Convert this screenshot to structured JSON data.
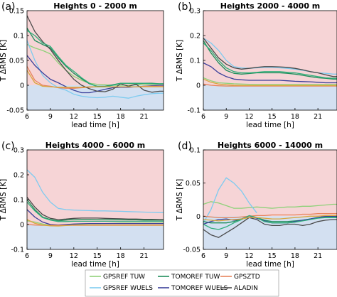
{
  "chart_data": [
    {
      "type": "line",
      "panel_label": "(a)",
      "title": "Heights 0 - 2000 m",
      "xlabel": "lead time [h]",
      "ylabel": "T ΔRMS [K]",
      "xlim": [
        6,
        23.5
      ],
      "ylim": [
        -0.05,
        0.15
      ],
      "xticks": [
        "6",
        "9",
        "12",
        "15",
        "18",
        "21"
      ],
      "xtick_values": [
        6,
        9,
        12,
        15,
        18,
        21
      ],
      "yticks": [
        "-0.05",
        "0",
        "0.05",
        "0.1",
        "0.15"
      ],
      "ytick_values": [
        -0.05,
        0,
        0.05,
        0.1,
        0.15
      ],
      "x": [
        6,
        7,
        8,
        9,
        10,
        11,
        12,
        13,
        14,
        15,
        16,
        17,
        18,
        19,
        20,
        21,
        22,
        23,
        23.5
      ],
      "series": [
        {
          "key": "gpsref_tuw",
          "values": [
            0.082,
            0.075,
            0.07,
            0.063,
            0.045,
            0.03,
            0.018,
            0.01,
            0.004,
            0.002,
            0.001,
            0.0,
            0.0,
            0.0,
            0.001,
            0.001,
            0.002,
            0.002,
            0.002
          ]
        },
        {
          "key": "gpsref_wuels",
          "values": [
            0.09,
            0.05,
            0.02,
            0.005,
            -0.005,
            -0.01,
            -0.018,
            -0.022,
            -0.024,
            -0.025,
            -0.024,
            -0.022,
            -0.024,
            -0.026,
            -0.022,
            -0.019,
            -0.017,
            -0.016,
            -0.016
          ]
        },
        {
          "key": "tomoref_tuw",
          "values": [
            0.115,
            0.09,
            0.082,
            0.075,
            0.055,
            0.038,
            0.024,
            0.013,
            0.003,
            -0.002,
            -0.002,
            0.001,
            0.004,
            0.004,
            0.003,
            0.004,
            0.004,
            0.003,
            0.003
          ]
        },
        {
          "key": "tomoref_wuels",
          "values": [
            0.06,
            0.04,
            0.025,
            0.012,
            0.005,
            -0.003,
            -0.01,
            -0.015,
            -0.015,
            -0.012,
            -0.008,
            -0.005,
            -0.004,
            -0.004,
            -0.003,
            -0.002,
            -0.001,
            0.0,
            0.0
          ]
        },
        {
          "key": "gpsztd",
          "values": [
            0.038,
            0.01,
            0.0,
            -0.002,
            -0.005,
            -0.006,
            -0.006,
            -0.005,
            -0.004,
            -0.003,
            -0.003,
            -0.003,
            -0.003,
            -0.003,
            -0.003,
            -0.002,
            -0.002,
            -0.002,
            -0.002
          ]
        },
        {
          "key": "aladin",
          "values": [
            0.14,
            0.108,
            0.088,
            0.072,
            0.05,
            0.03,
            0.012,
            0.0,
            -0.007,
            -0.012,
            -0.013,
            -0.008,
            0.003,
            -0.002,
            0.002,
            -0.01,
            -0.014,
            -0.012,
            -0.012
          ]
        },
        {
          "key": "tomoref_tuw_b",
          "values": [
            0.11,
            0.1,
            0.085,
            0.078,
            0.058,
            0.04,
            0.028,
            0.015,
            0.004,
            -0.003,
            -0.003,
            0.0,
            0.004,
            0.004,
            0.004,
            0.004,
            0.003,
            0.003,
            0.003
          ]
        },
        {
          "key": "gpsref_tuw_b",
          "values": [
            0.03,
            0.005,
            -0.002,
            -0.003,
            -0.004,
            -0.004,
            -0.004,
            -0.004,
            -0.003,
            -0.003,
            -0.003,
            -0.003,
            -0.003,
            -0.003,
            -0.003,
            -0.003,
            -0.003,
            -0.003,
            -0.003
          ]
        }
      ]
    },
    {
      "type": "line",
      "panel_label": "(b)",
      "title": "Heights 2000 - 4000 m",
      "xlabel": "lead time [h]",
      "ylabel": "T ΔRMS [K]",
      "xlim": [
        6,
        23.5
      ],
      "ylim": [
        -0.1,
        0.3
      ],
      "xticks": [
        "6",
        "9",
        "12",
        "15",
        "18",
        "21"
      ],
      "xtick_values": [
        6,
        9,
        12,
        15,
        18,
        21
      ],
      "yticks": [
        "-0.1",
        "0",
        "0.1",
        "0.2",
        "0.3"
      ],
      "ytick_values": [
        -0.1,
        0,
        0.1,
        0.2,
        0.3
      ],
      "x": [
        6,
        7,
        8,
        9,
        10,
        11,
        12,
        13,
        14,
        15,
        16,
        17,
        18,
        19,
        20,
        21,
        22,
        23,
        23.5
      ],
      "series": [
        {
          "key": "gpsref_tuw",
          "values": [
            0.03,
            0.018,
            0.01,
            0.008,
            0.006,
            0.005,
            0.004,
            0.003,
            0.003,
            0.003,
            0.003,
            0.003,
            0.003,
            0.003,
            0.003,
            0.003,
            0.003,
            0.003,
            0.003
          ]
        },
        {
          "key": "gpsref_wuels",
          "values": [
            0.19,
            0.17,
            0.14,
            0.1,
            0.075,
            0.07,
            0.068,
            0.07,
            0.072,
            0.072,
            0.07,
            0.068,
            0.065,
            0.06,
            0.055,
            0.05,
            0.048,
            0.045,
            0.045
          ]
        },
        {
          "key": "tomoref_tuw",
          "values": [
            0.18,
            0.13,
            0.09,
            0.06,
            0.048,
            0.045,
            0.047,
            0.05,
            0.05,
            0.05,
            0.05,
            0.048,
            0.045,
            0.04,
            0.035,
            0.03,
            0.028,
            0.025,
            0.025
          ]
        },
        {
          "key": "tomoref_wuels",
          "values": [
            0.09,
            0.075,
            0.05,
            0.035,
            0.025,
            0.022,
            0.02,
            0.02,
            0.02,
            0.02,
            0.02,
            0.018,
            0.016,
            0.015,
            0.014,
            0.012,
            0.01,
            0.01,
            0.01
          ]
        },
        {
          "key": "gpsztd",
          "values": [
            0.005,
            0.0,
            -0.002,
            -0.003,
            -0.003,
            -0.003,
            -0.003,
            -0.003,
            -0.003,
            -0.003,
            -0.003,
            -0.003,
            -0.003,
            -0.003,
            -0.003,
            -0.003,
            -0.003,
            -0.003,
            -0.003
          ]
        },
        {
          "key": "aladin",
          "values": [
            0.19,
            0.15,
            0.11,
            0.085,
            0.07,
            0.065,
            0.068,
            0.072,
            0.075,
            0.075,
            0.074,
            0.072,
            0.068,
            0.062,
            0.055,
            0.05,
            0.042,
            0.035,
            0.035
          ]
        },
        {
          "key": "tomoref_tuw_b",
          "values": [
            0.17,
            0.14,
            0.1,
            0.07,
            0.055,
            0.05,
            0.05,
            0.052,
            0.055,
            0.055,
            0.055,
            0.052,
            0.05,
            0.045,
            0.04,
            0.035,
            0.03,
            0.028,
            0.028
          ]
        },
        {
          "key": "gpsref_tuw_b",
          "values": [
            0.025,
            0.012,
            0.005,
            0.002,
            0.0,
            -0.001,
            -0.001,
            -0.001,
            -0.001,
            -0.001,
            -0.001,
            -0.001,
            -0.001,
            -0.001,
            -0.001,
            -0.001,
            -0.001,
            -0.001,
            -0.001
          ]
        }
      ]
    },
    {
      "type": "line",
      "panel_label": "(c)",
      "title": "Heights 4000 - 6000 m",
      "xlabel": "lead time [h]",
      "ylabel": "T ΔRMS [K]",
      "xlim": [
        6,
        23.5
      ],
      "ylim": [
        -0.1,
        0.3
      ],
      "xticks": [
        "6",
        "9",
        "12",
        "15",
        "18",
        "21"
      ],
      "xtick_values": [
        6,
        9,
        12,
        15,
        18,
        21
      ],
      "yticks": [
        "-0.1",
        "0",
        "0.1",
        "0.2",
        "0.3"
      ],
      "ytick_values": [
        -0.1,
        0,
        0.1,
        0.2,
        0.3
      ],
      "x": [
        6,
        7,
        8,
        9,
        10,
        11,
        12,
        13,
        14,
        15,
        16,
        17,
        18,
        19,
        20,
        21,
        22,
        23,
        23.5
      ],
      "series": [
        {
          "key": "gpsref_tuw",
          "values": [
            0.015,
            0.01,
            0.002,
            -0.003,
            -0.005,
            -0.002,
            0.0,
            0.002,
            0.003,
            0.003,
            0.004,
            0.005,
            0.006,
            0.006,
            0.006,
            0.006,
            0.006,
            0.006,
            0.006
          ]
        },
        {
          "key": "gpsref_wuels",
          "values": [
            0.22,
            0.19,
            0.13,
            0.09,
            0.065,
            0.06,
            0.058,
            0.057,
            0.056,
            0.055,
            0.055,
            0.054,
            0.053,
            0.052,
            0.051,
            0.05,
            0.049,
            0.048,
            0.048
          ]
        },
        {
          "key": "tomoref_tuw",
          "values": [
            0.1,
            0.06,
            0.03,
            0.02,
            0.015,
            0.018,
            0.02,
            0.021,
            0.021,
            0.02,
            0.02,
            0.02,
            0.02,
            0.019,
            0.019,
            0.018,
            0.018,
            0.018,
            0.018
          ]
        },
        {
          "key": "tomoref_wuels",
          "values": [
            0.06,
            0.03,
            0.01,
            0.0,
            -0.002,
            0.0,
            0.002,
            0.003,
            0.004,
            0.004,
            0.004,
            0.004,
            0.004,
            0.004,
            0.004,
            0.004,
            0.004,
            0.004,
            0.004
          ]
        },
        {
          "key": "gpsztd",
          "values": [
            0.0,
            -0.002,
            -0.003,
            -0.003,
            -0.003,
            -0.003,
            -0.003,
            -0.003,
            -0.003,
            -0.003,
            -0.003,
            -0.003,
            -0.003,
            -0.003,
            -0.003,
            -0.003,
            -0.003,
            -0.003,
            -0.003
          ]
        },
        {
          "key": "aladin",
          "values": [
            0.11,
            0.07,
            0.04,
            0.025,
            0.02,
            0.022,
            0.025,
            0.026,
            0.026,
            0.026,
            0.025,
            0.024,
            0.023,
            0.022,
            0.022,
            0.021,
            0.021,
            0.02,
            0.02
          ]
        },
        {
          "key": "tomoref_tuw_b",
          "values": [
            0.09,
            0.055,
            0.028,
            0.018,
            0.012,
            0.012,
            0.013,
            0.013,
            0.013,
            0.013,
            0.013,
            0.013,
            0.013,
            0.013,
            0.013,
            0.013,
            0.013,
            0.013,
            0.013
          ]
        },
        {
          "key": "gpsref_tuw_b",
          "values": [
            0.02,
            0.005,
            -0.002,
            -0.005,
            -0.006,
            -0.004,
            -0.002,
            -0.002,
            -0.002,
            -0.002,
            -0.002,
            -0.002,
            -0.002,
            -0.002,
            -0.002,
            -0.002,
            -0.002,
            -0.002,
            -0.002
          ]
        }
      ]
    },
    {
      "type": "line",
      "panel_label": "(d)",
      "title": "Heights 6000 - 14000 m",
      "xlabel": "lead time [h]",
      "ylabel": "T ΔRMS [K]",
      "xlim": [
        6,
        23.5
      ],
      "ylim": [
        -0.05,
        0.1
      ],
      "xticks": [
        "6",
        "9",
        "12",
        "15",
        "18",
        "21"
      ],
      "xtick_values": [
        6,
        9,
        12,
        15,
        18,
        21
      ],
      "yticks": [
        "-0.05",
        "0",
        "0.05",
        "0.1"
      ],
      "ytick_values": [
        -0.05,
        0,
        0.05,
        0.1
      ],
      "x": [
        6,
        7,
        8,
        9,
        10,
        11,
        12,
        13,
        14,
        15,
        16,
        17,
        18,
        19,
        20,
        21,
        22,
        23,
        23.5
      ],
      "series": [
        {
          "key": "gpsref_tuw",
          "values": [
            0.018,
            0.022,
            0.02,
            0.016,
            0.012,
            0.012,
            0.013,
            0.014,
            0.013,
            0.012,
            0.013,
            0.014,
            0.014,
            0.015,
            0.015,
            0.016,
            0.017,
            0.018,
            0.018
          ]
        },
        {
          "key": "gpsref_wuels",
          "values": [
            -0.01,
            0.01,
            0.04,
            0.058,
            0.05,
            0.038,
            0.02,
            0.005,
            null,
            null,
            null,
            null,
            null,
            null,
            null,
            null,
            null,
            null,
            null
          ]
        },
        {
          "key": "tomoref_tuw",
          "values": [
            -0.008,
            -0.01,
            -0.01,
            -0.01,
            -0.008,
            -0.004,
            0.0,
            -0.002,
            -0.006,
            -0.008,
            -0.008,
            -0.008,
            -0.007,
            -0.006,
            -0.004,
            -0.002,
            -0.001,
            -0.001,
            -0.001
          ]
        },
        {
          "key": "tomoref_wuels",
          "values": [
            -0.012,
            -0.008,
            -0.005,
            -0.004,
            -0.006,
            -0.004,
            0.0,
            -0.003,
            -0.007,
            -0.01,
            -0.01,
            -0.01,
            -0.008,
            -0.006,
            -0.004,
            -0.002,
            0.0,
            0.0,
            0.0
          ]
        },
        {
          "key": "gpsztd",
          "values": [
            0.0,
            -0.001,
            -0.002,
            -0.002,
            -0.002,
            -0.001,
            0.0,
            0.001,
            0.001,
            0.002,
            0.002,
            0.002,
            0.002,
            0.003,
            0.003,
            0.004,
            0.004,
            0.004,
            0.004
          ]
        },
        {
          "key": "aladin",
          "values": [
            -0.02,
            -0.028,
            -0.032,
            -0.025,
            -0.018,
            -0.01,
            -0.002,
            -0.005,
            -0.012,
            -0.014,
            -0.014,
            -0.012,
            -0.012,
            -0.014,
            -0.012,
            -0.008,
            -0.006,
            -0.005,
            -0.005
          ]
        },
        {
          "key": "tomoref_tuw_b",
          "values": [
            -0.012,
            -0.018,
            -0.02,
            -0.016,
            -0.01,
            -0.005,
            0.001,
            -0.002,
            -0.008,
            -0.01,
            -0.01,
            -0.01,
            -0.009,
            -0.007,
            -0.005,
            -0.003,
            -0.002,
            -0.002,
            -0.002
          ]
        },
        {
          "key": "gpsref_tuw_b",
          "values": [
            -0.005,
            -0.006,
            -0.007,
            -0.006,
            -0.005,
            -0.004,
            -0.002,
            -0.002,
            -0.003,
            -0.004,
            -0.004,
            -0.003,
            -0.002,
            -0.001,
            0.0,
            0.0,
            0.001,
            0.001,
            0.001
          ]
        }
      ]
    }
  ],
  "series_styles": {
    "gpsref_tuw": {
      "color": "#8fd17a"
    },
    "gpsref_wuels": {
      "color": "#7ecbf0"
    },
    "tomoref_tuw": {
      "color": "#1f8e5b"
    },
    "tomoref_wuels": {
      "color": "#3a3f9a"
    },
    "gpsztd": {
      "color": "#e8835b"
    },
    "aladin": {
      "color": "#4a4a4a"
    },
    "tomoref_tuw_b": {
      "color": "#2fae7a"
    },
    "gpsref_tuw_b": {
      "color": "#d9a640"
    }
  },
  "background": {
    "positive_color": "#f6d4d6",
    "negative_color": "#d3e0f1"
  },
  "legend": {
    "placement": "bottom",
    "entries": [
      {
        "label": "GPSREF TUW",
        "color": "#8fd17a"
      },
      {
        "label": "TOMOREF TUW",
        "color": "#1f8e5b"
      },
      {
        "label": "GPSZTD",
        "color": "#e8835b"
      },
      {
        "label": "GPSREF WUELS",
        "color": "#7ecbf0"
      },
      {
        "label": "TOMOREF WUELS",
        "color": "#3a3f9a"
      },
      {
        "label": "ALADIN",
        "color": "#4a4a4a"
      }
    ]
  }
}
